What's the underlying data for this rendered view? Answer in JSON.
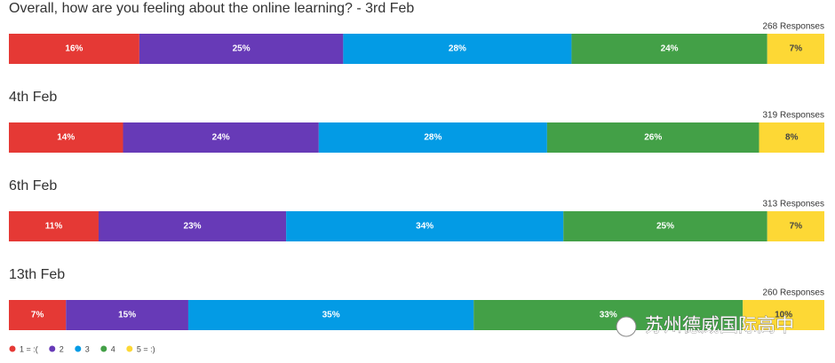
{
  "chart_data": {
    "type": "stacked_bar_rows",
    "categories": [
      "Overall, how are you feeling about the online learning? - 3rd Feb",
      "4th Feb",
      "6th Feb",
      "13th Feb"
    ],
    "responses": [
      "268 Responses",
      "319 Responses",
      "313 Responses",
      "260 Responses"
    ],
    "series": [
      {
        "name": "1 = :(",
        "color": "#e53935",
        "values": [
          16,
          14,
          11,
          7
        ],
        "value_labels": [
          "16%",
          "14%",
          "11%",
          "7%"
        ]
      },
      {
        "name": "2",
        "color": "#673ab7",
        "values": [
          25,
          24,
          23,
          15
        ],
        "value_labels": [
          "25%",
          "24%",
          "23%",
          "15%"
        ]
      },
      {
        "name": "3",
        "color": "#039be5",
        "values": [
          28,
          28,
          34,
          35
        ],
        "value_labels": [
          "28%",
          "28%",
          "34%",
          "35%"
        ]
      },
      {
        "name": "4",
        "color": "#43a047",
        "values": [
          24,
          26,
          25,
          33
        ],
        "value_labels": [
          "24%",
          "26%",
          "25%",
          "33%"
        ]
      },
      {
        "name": "5 = :)",
        "color": "#fdd835",
        "values": [
          7,
          8,
          7,
          10
        ],
        "value_labels": [
          "7%",
          "8%",
          "7%",
          "10%"
        ]
      }
    ]
  },
  "watermark": "苏州德威国际高中"
}
